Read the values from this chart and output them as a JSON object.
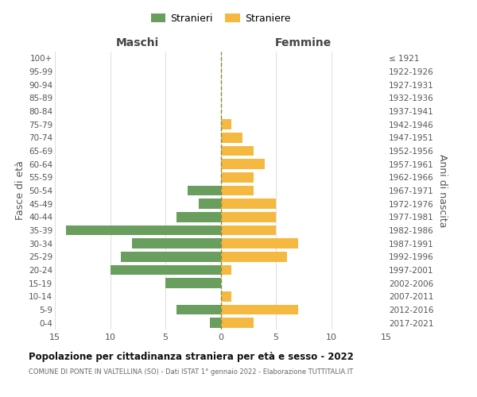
{
  "age_groups": [
    "100+",
    "95-99",
    "90-94",
    "85-89",
    "80-84",
    "75-79",
    "70-74",
    "65-69",
    "60-64",
    "55-59",
    "50-54",
    "45-49",
    "40-44",
    "35-39",
    "30-34",
    "25-29",
    "20-24",
    "15-19",
    "10-14",
    "5-9",
    "0-4"
  ],
  "birth_years": [
    "≤ 1921",
    "1922-1926",
    "1927-1931",
    "1932-1936",
    "1937-1941",
    "1942-1946",
    "1947-1951",
    "1952-1956",
    "1957-1961",
    "1962-1966",
    "1967-1971",
    "1972-1976",
    "1977-1981",
    "1982-1986",
    "1987-1991",
    "1992-1996",
    "1997-2001",
    "2002-2006",
    "2007-2011",
    "2012-2016",
    "2017-2021"
  ],
  "males": [
    0,
    0,
    0,
    0,
    0,
    0,
    0,
    0,
    0,
    0,
    3,
    2,
    4,
    14,
    8,
    9,
    10,
    5,
    0,
    4,
    1
  ],
  "females": [
    0,
    0,
    0,
    0,
    0,
    1,
    2,
    3,
    4,
    3,
    3,
    5,
    5,
    5,
    7,
    6,
    1,
    0,
    1,
    7,
    3
  ],
  "male_color": "#6a9e5e",
  "female_color": "#f5b942",
  "grid_color": "#d0d0d0",
  "dashed_line_color": "#8b8b3a",
  "title": "Popolazione per cittadinanza straniera per età e sesso - 2022",
  "subtitle": "COMUNE DI PONTE IN VALTELLINA (SO) - Dati ISTAT 1° gennaio 2022 - Elaborazione TUTTITALIA.IT",
  "header_left": "Maschi",
  "header_right": "Femmine",
  "ylabel_left": "Fasce di età",
  "ylabel_right": "Anni di nascita",
  "legend_male": "Stranieri",
  "legend_female": "Straniere",
  "xlim": 15
}
